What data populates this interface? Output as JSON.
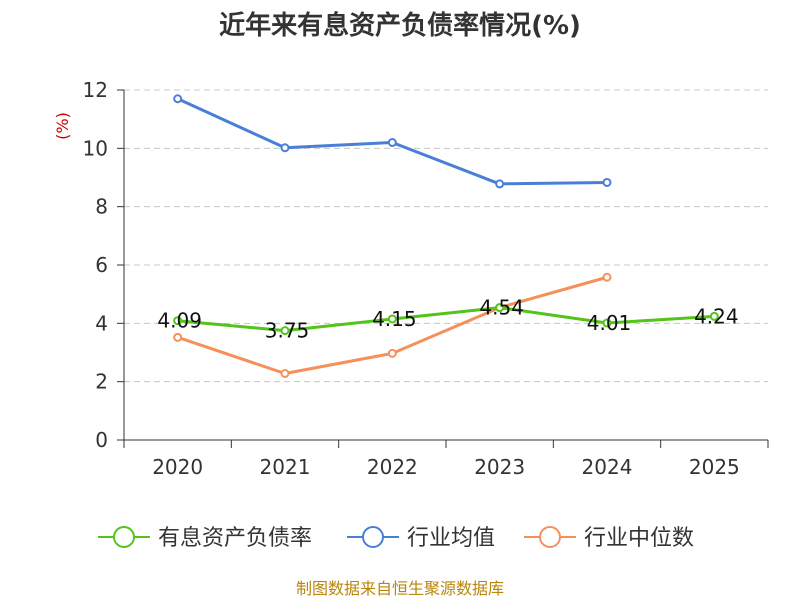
{
  "chart_data": {
    "type": "line",
    "title": "近年来有息资产负债率情况(%)",
    "unit_label": "(%)",
    "categories": [
      "2020",
      "2021",
      "2022",
      "2023",
      "2024",
      "2025"
    ],
    "ylim": [
      0,
      12
    ],
    "yticks": [
      0,
      2,
      4,
      6,
      8,
      10,
      12
    ],
    "grid": true,
    "legend_position": "bottom",
    "series": [
      {
        "name": "有息资产负债率",
        "color": "#52c41a",
        "values": [
          4.09,
          3.75,
          4.15,
          4.54,
          4.01,
          4.24
        ],
        "show_labels": true,
        "labels": [
          "4.09",
          "3.75",
          "4.15",
          "4.54",
          "4.01",
          "4.24"
        ]
      },
      {
        "name": "行业均值",
        "color": "#4a7fd8",
        "values": [
          11.7,
          10.02,
          10.2,
          8.78,
          8.83,
          null
        ],
        "show_labels": false
      },
      {
        "name": "行业中位数",
        "color": "#f5905a",
        "values": [
          3.52,
          2.28,
          2.97,
          4.54,
          5.58,
          null
        ],
        "show_labels": false
      }
    ],
    "source": "制图数据来自恒生聚源数据库"
  }
}
